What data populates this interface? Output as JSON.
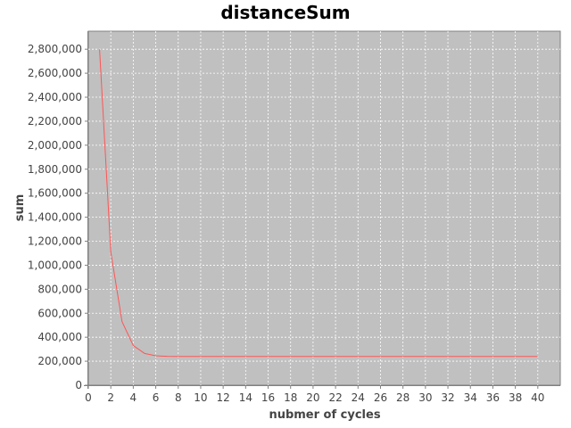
{
  "chart_data": {
    "type": "line",
    "title": "distanceSum",
    "xlabel": "nubmer of cycles",
    "ylabel": "sum",
    "xlim": [
      0,
      42
    ],
    "ylim": [
      0,
      2950000
    ],
    "x_ticks": [
      0,
      2,
      4,
      6,
      8,
      10,
      12,
      14,
      16,
      18,
      20,
      22,
      24,
      26,
      28,
      30,
      32,
      34,
      36,
      38,
      40
    ],
    "x_tick_labels": [
      "0",
      "2",
      "4",
      "6",
      "8",
      "10",
      "12",
      "14",
      "16",
      "18",
      "20",
      "22",
      "24",
      "26",
      "28",
      "30",
      "32",
      "34",
      "36",
      "38",
      "40"
    ],
    "y_ticks": [
      0,
      200000,
      400000,
      600000,
      800000,
      1000000,
      1200000,
      1400000,
      1600000,
      1800000,
      2000000,
      2200000,
      2400000,
      2600000,
      2800000
    ],
    "y_tick_labels": [
      "0",
      "200,000",
      "400,000",
      "600,000",
      "800,000",
      "1,000,000",
      "1,200,000",
      "1,400,000",
      "1,600,000",
      "1,800,000",
      "2,000,000",
      "2,200,000",
      "2,400,000",
      "2,600,000",
      "2,800,000"
    ],
    "grid": true,
    "plot_background": "#c0c0c0",
    "grid_color": "#ffffff",
    "series": [
      {
        "color": "#ff5555",
        "x": [
          1,
          2,
          3,
          4,
          5,
          6,
          7,
          8,
          9,
          10,
          11,
          12,
          13,
          14,
          15,
          16,
          17,
          18,
          19,
          20,
          21,
          22,
          23,
          24,
          25,
          26,
          27,
          28,
          29,
          30,
          31,
          32,
          33,
          34,
          35,
          36,
          37,
          38,
          39,
          40
        ],
        "y": [
          2800000,
          1110000,
          530000,
          330000,
          265000,
          245000,
          241000,
          240000,
          240000,
          240000,
          240000,
          240000,
          240000,
          240000,
          240000,
          240000,
          240000,
          240000,
          240000,
          240000,
          240000,
          240000,
          240000,
          240000,
          240000,
          240000,
          240000,
          240000,
          240000,
          240000,
          240000,
          240000,
          240000,
          240000,
          240000,
          240000,
          240000,
          240000,
          240000,
          240000
        ]
      }
    ]
  }
}
